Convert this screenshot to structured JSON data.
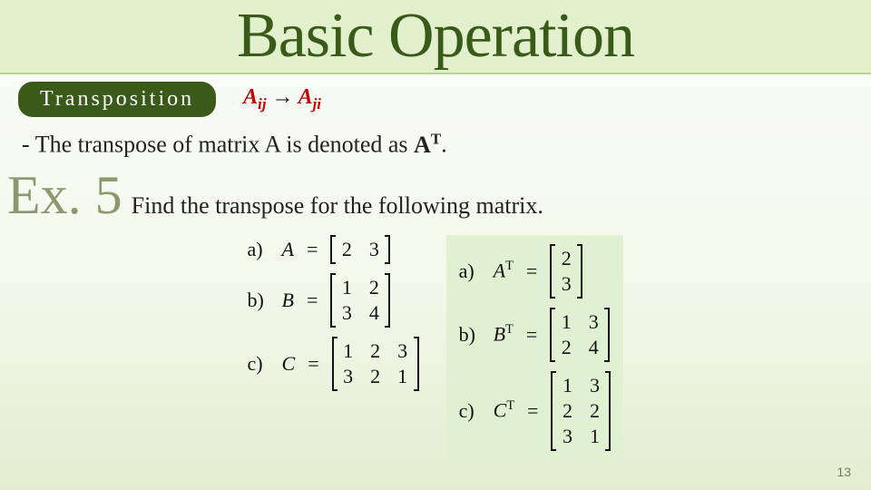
{
  "title": "Basic Operation",
  "subtitle": "Transposition",
  "formula_lhs": "A",
  "formula_lhs_sub": "ij",
  "formula_arrow": "→",
  "formula_rhs": "A",
  "formula_rhs_sub": "ji",
  "body_prefix": "- The transpose of matrix A is denoted as ",
  "body_bold_A": "A",
  "body_sup_T": "T",
  "body_suffix": ".",
  "ex_label": "Ex. 5",
  "ex_text": "Find the transpose for the following matrix.",
  "page_number": "13",
  "colors": {
    "title_bg": "#e2f0ce",
    "title_color": "#3a5a1a",
    "title_underline": "#b8d48c",
    "pill_bg": "#3a5a1a",
    "pill_fg": "#ffffff",
    "formula_red": "#c00000",
    "ex_label_color": "#899a6f",
    "answer_bg": "#dff1d1",
    "text": "#222222",
    "page_num_color": "#7a7a60",
    "gradient_top": "#fbfdf9",
    "gradient_bottom": "#e3edcf"
  },
  "problems_left": [
    {
      "label": "a)",
      "var": "A",
      "rows": 1,
      "cols": 2,
      "cells": [
        "2",
        "3"
      ]
    },
    {
      "label": "b)",
      "var": "B",
      "rows": 2,
      "cols": 2,
      "cells": [
        "1",
        "2",
        "3",
        "4"
      ]
    },
    {
      "label": "c)",
      "var": "C",
      "rows": 2,
      "cols": 3,
      "cells": [
        "1",
        "2",
        "3",
        "3",
        "2",
        "1"
      ]
    }
  ],
  "problems_right": [
    {
      "label": "a)",
      "var": "A",
      "rows": 2,
      "cols": 1,
      "cells": [
        "2",
        "3"
      ]
    },
    {
      "label": "b)",
      "var": "B",
      "rows": 2,
      "cols": 2,
      "cells": [
        "1",
        "3",
        "2",
        "4"
      ]
    },
    {
      "label": "c)",
      "var": "C",
      "rows": 3,
      "cols": 2,
      "cells": [
        "1",
        "3",
        "2",
        "2",
        "3",
        "1"
      ]
    }
  ]
}
